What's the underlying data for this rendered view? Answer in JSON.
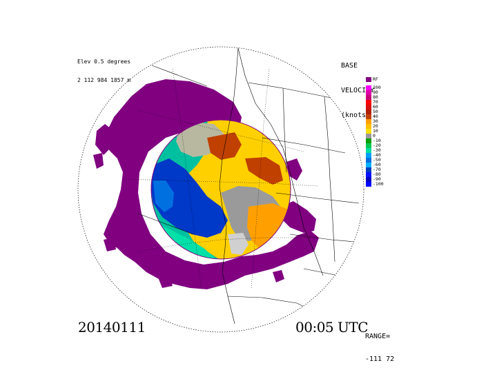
{
  "header": {
    "elevation_line1": "Elev 0.5 degrees",
    "elevation_line2": "2 112 984 1857 m"
  },
  "product": {
    "title_line1": "BASE",
    "title_line2": "VELOCITY",
    "title_line3": "(knots)"
  },
  "legend": {
    "entries": [
      {
        "label": "RF",
        "color": "#800080"
      },
      {
        "label": "100",
        "color": "#ff00ff"
      },
      {
        "label": "90",
        "color": "#e000a8"
      },
      {
        "label": "80",
        "color": "#c80078"
      },
      {
        "label": "70",
        "color": "#ff0000"
      },
      {
        "label": "60",
        "color": "#d81010"
      },
      {
        "label": "50",
        "color": "#b02000"
      },
      {
        "label": "40",
        "color": "#c04000"
      },
      {
        "label": "30",
        "color": "#ffa000"
      },
      {
        "label": "20",
        "color": "#ffc000"
      },
      {
        "label": "10",
        "color": "#ffe000"
      },
      {
        "label": "0",
        "color": "#9a9a9a"
      },
      {
        "label": "-10",
        "color": "#00a000"
      },
      {
        "label": "-20",
        "color": "#00c850"
      },
      {
        "label": "-30",
        "color": "#00e0a0"
      },
      {
        "label": "-40",
        "color": "#00a0ff"
      },
      {
        "label": "-50",
        "color": "#0070e0"
      },
      {
        "label": "-60",
        "color": "#00b0ff"
      },
      {
        "label": "-70",
        "color": "#0040c0"
      },
      {
        "label": "-80",
        "color": "#0010ff"
      },
      {
        "label": "-90",
        "color": "#0000c0"
      },
      {
        "label": "-100",
        "color": "#0000ff"
      }
    ]
  },
  "footer": {
    "date": "20140111",
    "time": "00:05 UTC",
    "range_label": "RANGE=",
    "range_value": "-111 72"
  },
  "colors": {
    "rf_purple": "#800080",
    "map_lines": "#000000"
  }
}
